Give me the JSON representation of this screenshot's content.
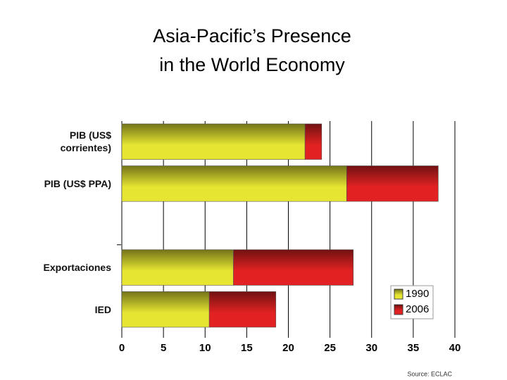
{
  "chart_data": {
    "type": "bar",
    "orientation": "horizontal",
    "stacked": true,
    "title": [
      "Asia-Pacific’s Presence",
      "in the World Economy"
    ],
    "categories": [
      "PIB (US$ corrientes)",
      "PIB (US$ PPA)",
      null,
      "Exportaciones",
      "IED"
    ],
    "series": [
      {
        "name": "1990",
        "color": "#e6e632",
        "values": [
          22,
          27,
          null,
          13.4,
          10.5
        ]
      },
      {
        "name": "2006",
        "color": "#e22222",
        "values": [
          2,
          11,
          null,
          14.4,
          8
        ]
      }
    ],
    "xlim": [
      0,
      40
    ],
    "xticks": [
      0,
      5,
      10,
      15,
      20,
      25,
      30,
      35,
      40
    ],
    "grid": true,
    "legend": "lower right",
    "source": "Source: ECLAC"
  }
}
